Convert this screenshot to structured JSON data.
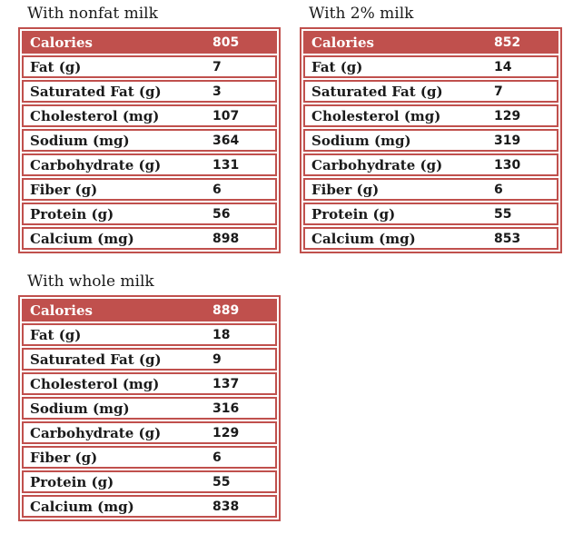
{
  "colors": {
    "accent": "#c0504d",
    "header_text": "#ffffff",
    "body_text": "#1a1a1a",
    "background": "#ffffff"
  },
  "tables": [
    {
      "id": "nonfat-milk",
      "title": "With nonfat milk",
      "header": {
        "label": "Calories",
        "value": "805"
      },
      "rows": [
        {
          "label": "Fat (g)",
          "value": "7"
        },
        {
          "label": "Saturated Fat (g)",
          "value": "3"
        },
        {
          "label": "Cholesterol (mg)",
          "value": "107"
        },
        {
          "label": "Sodium (mg)",
          "value": "364"
        },
        {
          "label": "Carbohydrate (g)",
          "value": "131"
        },
        {
          "label": "Fiber (g)",
          "value": "6"
        },
        {
          "label": "Protein (g)",
          "value": "56"
        },
        {
          "label": "Calcium (mg)",
          "value": "898"
        }
      ]
    },
    {
      "id": "2-percent-milk",
      "title": "With 2% milk",
      "header": {
        "label": "Calories",
        "value": "852"
      },
      "rows": [
        {
          "label": "Fat (g)",
          "value": "14"
        },
        {
          "label": "Saturated Fat (g)",
          "value": "7"
        },
        {
          "label": "Cholesterol (mg)",
          "value": "129"
        },
        {
          "label": "Sodium (mg)",
          "value": "319"
        },
        {
          "label": "Carbohydrate (g)",
          "value": "130"
        },
        {
          "label": "Fiber (g)",
          "value": "6"
        },
        {
          "label": "Protein (g)",
          "value": "55"
        },
        {
          "label": "Calcium (mg)",
          "value": "853"
        }
      ]
    },
    {
      "id": "whole-milk",
      "title": "With whole milk",
      "header": {
        "label": "Calories",
        "value": "889"
      },
      "rows": [
        {
          "label": "Fat (g)",
          "value": "18"
        },
        {
          "label": "Saturated Fat (g)",
          "value": "9"
        },
        {
          "label": "Cholesterol (mg)",
          "value": "137"
        },
        {
          "label": "Sodium (mg)",
          "value": "316"
        },
        {
          "label": "Carbohydrate (g)",
          "value": "129"
        },
        {
          "label": "Fiber (g)",
          "value": "6"
        },
        {
          "label": "Protein (g)",
          "value": "55"
        },
        {
          "label": "Calcium (mg)",
          "value": "838"
        }
      ]
    }
  ]
}
